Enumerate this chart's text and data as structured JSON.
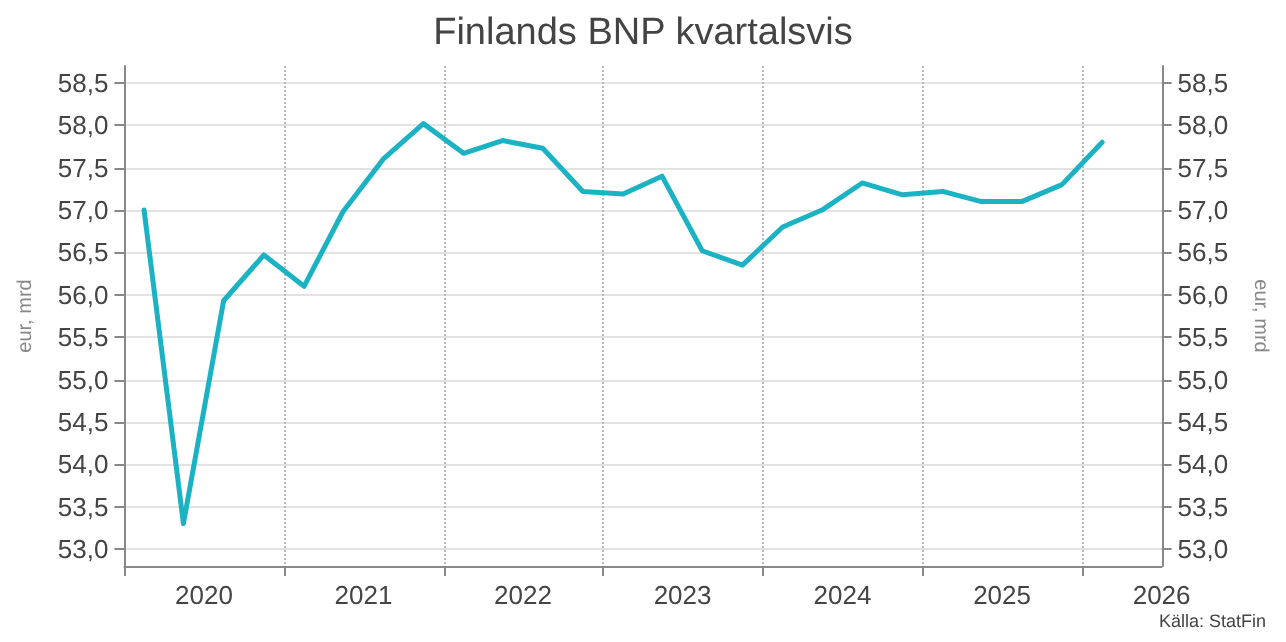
{
  "chart_data": {
    "type": "line",
    "title": "Finlands BNP kvartalsvis",
    "ylabel": "eur, mrd",
    "y2label": "eur, mrd",
    "annotations": [
      "Källa: StatFin"
    ],
    "x": [
      "2020-02-15",
      "2020-05-15",
      "2020-08-15",
      "2020-11-15",
      "2021-02-15",
      "2021-05-15",
      "2021-08-15",
      "2021-11-15",
      "2022-02-15",
      "2022-05-15",
      "2022-08-15",
      "2022-11-15",
      "2023-02-15",
      "2023-05-15",
      "2023-08-15",
      "2023-11-15",
      "2024-02-15",
      "2024-05-15",
      "2024-08-15",
      "2024-11-15",
      "2025-02-15",
      "2025-05-15",
      "2025-08-15",
      "2025-11-15",
      "2026-02-15"
    ],
    "series": [
      {
        "color": "#1bb3c4",
        "values": [
          57.0,
          53.3,
          55.93,
          56.47,
          56.1,
          56.98,
          57.6,
          58.02,
          57.67,
          57.82,
          57.73,
          57.22,
          57.19,
          57.4,
          56.52,
          56.35,
          56.8,
          57.0,
          57.32,
          57.18,
          57.22,
          57.1,
          57.1,
          57.3,
          57.8
        ]
      }
    ],
    "xlim": [
      "2020-01-01",
      "2026-07-01"
    ],
    "xticks": [
      {
        "value": "2020-01-01",
        "label": null
      },
      {
        "value": "2020-07-01",
        "label": "2020"
      },
      {
        "value": "2021-01-01",
        "label": null
      },
      {
        "value": "2021-07-01",
        "label": "2021"
      },
      {
        "value": "2022-01-01",
        "label": null
      },
      {
        "value": "2022-07-01",
        "label": "2022"
      },
      {
        "value": "2023-01-01",
        "label": null
      },
      {
        "value": "2023-07-01",
        "label": "2023"
      },
      {
        "value": "2024-01-01",
        "label": null
      },
      {
        "value": "2024-07-01",
        "label": "2024"
      },
      {
        "value": "2025-01-01",
        "label": null
      },
      {
        "value": "2025-07-01",
        "label": "2025"
      },
      {
        "value": "2026-01-01",
        "label": null
      },
      {
        "value": "2026-07-01",
        "label": "2026"
      }
    ],
    "ylim": [
      52.8,
      58.7
    ],
    "yticks": [
      {
        "value": 53,
        "label": "53,0"
      },
      {
        "value": 53.5,
        "label": "53,5"
      },
      {
        "value": 54,
        "label": "54,0"
      },
      {
        "value": 54.5,
        "label": "54,5"
      },
      {
        "value": 55,
        "label": "55,0"
      },
      {
        "value": 55.5,
        "label": "55,5"
      },
      {
        "value": 56,
        "label": "56,0"
      },
      {
        "value": 56.5,
        "label": "56,5"
      },
      {
        "value": 57,
        "label": "57,0"
      },
      {
        "value": 57.5,
        "label": "57,5"
      },
      {
        "value": 58,
        "label": "58,0"
      },
      {
        "value": 58.5,
        "label": "58,5"
      }
    ],
    "y2lim": [
      52.8,
      58.7
    ],
    "y2ticks": [
      {
        "value": 53,
        "label": "53,0"
      },
      {
        "value": 53.5,
        "label": "53,5"
      },
      {
        "value": 54,
        "label": "54,0"
      },
      {
        "value": 54.5,
        "label": "54,5"
      },
      {
        "value": 55,
        "label": "55,0"
      },
      {
        "value": 55.5,
        "label": "55,5"
      },
      {
        "value": 56,
        "label": "56,0"
      },
      {
        "value": 56.5,
        "label": "56,5"
      },
      {
        "value": 57,
        "label": "57,0"
      },
      {
        "value": 57.5,
        "label": "57,5"
      },
      {
        "value": 58,
        "label": "58,0"
      },
      {
        "value": 58.5,
        "label": "58,5"
      }
    ],
    "grid": true,
    "marker": "none",
    "line_style": "solid"
  }
}
